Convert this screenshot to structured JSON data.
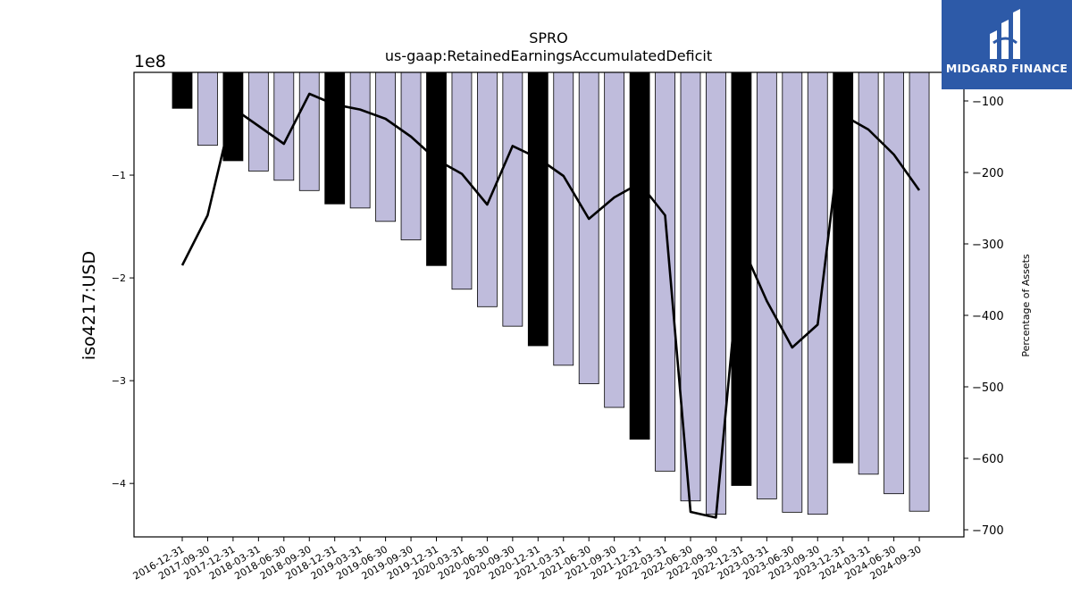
{
  "chart_data": {
    "type": "bar",
    "title": "SPRO",
    "subtitle": "us-gaap:RetainedEarningsAccumulatedDeficit",
    "ylabel": "iso4217:USD",
    "y2label": "Percentage of Assets",
    "y_offset_label": "1e8",
    "ylim": [
      -452000000.0,
      0
    ],
    "y2lim": [
      -710,
      -60
    ],
    "yticks": [
      -1,
      -2,
      -3,
      -4
    ],
    "y2ticks": [
      -100,
      -200,
      -300,
      -400,
      -500,
      -600,
      -700
    ],
    "categories": [
      "2016-12-31",
      "2017-09-30",
      "2017-12-31",
      "2018-03-31",
      "2018-06-30",
      "2018-09-30",
      "2018-12-31",
      "2019-03-31",
      "2019-06-30",
      "2019-09-30",
      "2019-12-31",
      "2020-03-31",
      "2020-06-30",
      "2020-09-30",
      "2020-12-31",
      "2021-03-31",
      "2021-06-30",
      "2021-09-30",
      "2021-12-31",
      "2022-03-31",
      "2022-06-30",
      "2022-09-30",
      "2022-12-31",
      "2023-03-31",
      "2023-06-30",
      "2023-09-30",
      "2023-12-31",
      "2024-03-31",
      "2024-06-30",
      "2024-09-30"
    ],
    "series": [
      {
        "type": "bar",
        "values": [
          -35000000.0,
          -71000000.0,
          -86000000.0,
          -96000000.0,
          -105000000.0,
          -115000000.0,
          -128000000.0,
          -132000000.0,
          -145000000.0,
          -163000000.0,
          -188000000.0,
          -211000000.0,
          -228000000.0,
          -247000000.0,
          -266000000.0,
          -285000000.0,
          -303000000.0,
          -326000000.0,
          -357000000.0,
          -388000000.0,
          -417000000.0,
          -430000000.0,
          -402000000.0,
          -415000000.0,
          -428000000.0,
          -430000000.0,
          -380000000.0,
          -391000000.0,
          -410000000.0,
          -427000000.0
        ],
        "annual_flags": [
          true,
          false,
          true,
          false,
          false,
          false,
          true,
          false,
          false,
          false,
          true,
          false,
          false,
          false,
          true,
          false,
          false,
          false,
          true,
          false,
          false,
          false,
          true,
          false,
          false,
          false,
          true,
          false,
          false,
          false
        ]
      },
      {
        "type": "line",
        "axis": "right",
        "values": [
          -330,
          -260,
          -110,
          -135,
          -160,
          -90,
          -105,
          -112,
          -125,
          -150,
          -182,
          -202,
          -245,
          -163,
          -180,
          -205,
          -265,
          -235,
          -215,
          -260,
          -675,
          -683,
          -300,
          -380,
          -445,
          -413,
          -120,
          -140,
          -175,
          -225
        ]
      }
    ],
    "colors": {
      "bar": "#bfbcdc",
      "bar_annual": "#000000",
      "line": "#000000"
    },
    "grid": false
  },
  "logo": {
    "text": "MIDGARD FINANCE",
    "bg": "#2d5aa8"
  }
}
